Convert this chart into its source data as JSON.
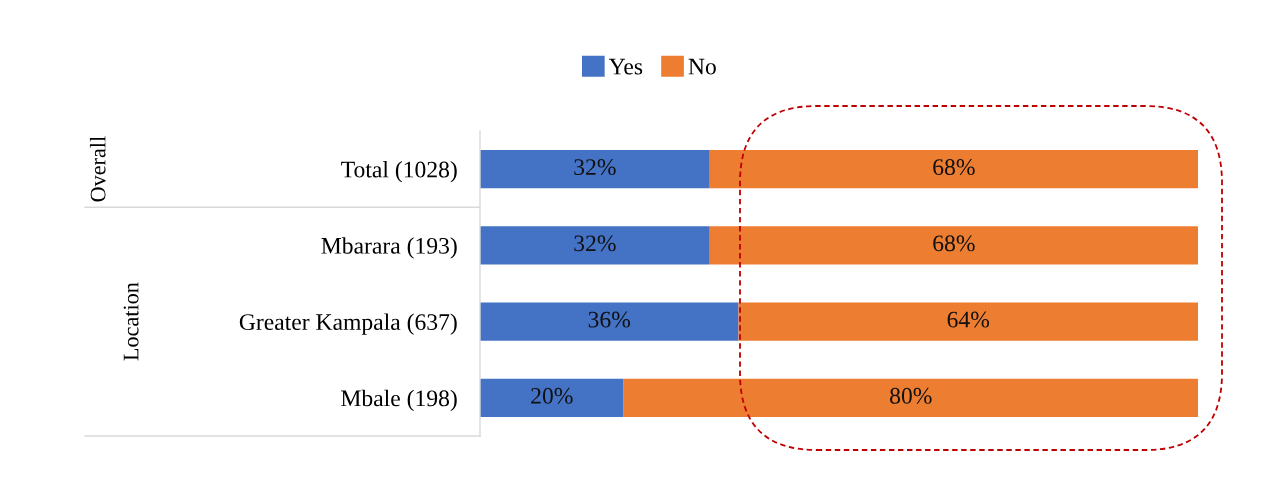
{
  "chart_data": {
    "type": "bar",
    "orientation": "horizontal",
    "stacked": true,
    "categories": [
      "Total (1028)",
      "Mbarara (193)",
      "Greater Kampala (637)",
      "Mbale (198)"
    ],
    "series": [
      {
        "name": "Yes",
        "color": "#4472c4",
        "values": [
          32,
          32,
          36,
          20
        ],
        "value_labels": [
          "32%",
          "32%",
          "36%",
          "20%"
        ]
      },
      {
        "name": "No",
        "color": "#ed7d31",
        "values": [
          68,
          68,
          64,
          80
        ],
        "value_labels": [
          "68%",
          "68%",
          "64%",
          "80%"
        ]
      }
    ],
    "annotations": [
      "Overall",
      "Location"
    ],
    "legend": "top",
    "tick_labels": "y",
    "grid": false
  }
}
